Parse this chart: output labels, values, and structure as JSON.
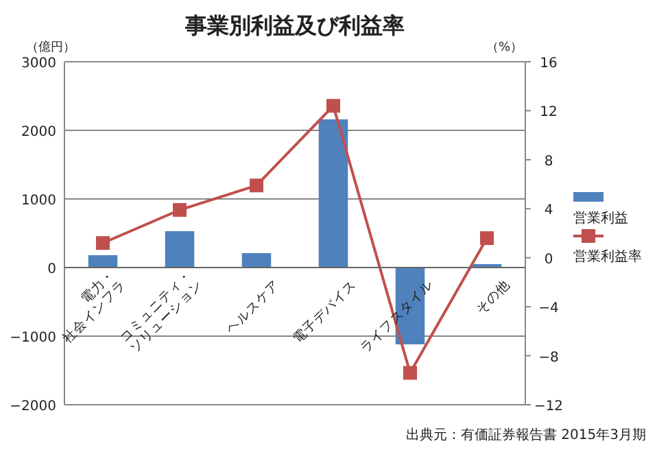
{
  "chart_data": {
    "type": "bar",
    "title": "事業別利益及び利益率",
    "categories": [
      "電力・\n社会インフラ",
      "コミュニティ・\nソリューション",
      "ヘルスケア",
      "電子デバイス",
      "ライフスタイル",
      "その他"
    ],
    "series": [
      {
        "name": "営業利益",
        "color": "#4f81bd",
        "values": [
          180,
          530,
          210,
          2160,
          -1120,
          50
        ]
      },
      {
        "name": "営業利益率",
        "type": "line",
        "axis": "y2",
        "color": "#c0504d",
        "marker": "square",
        "values": [
          1.2,
          3.9,
          5.9,
          12.4,
          -9.4,
          1.6
        ]
      }
    ],
    "ylabel": "（億円）",
    "y2label": "（%）",
    "ylim": [
      -2000,
      3000
    ],
    "yticks": [
      -2000,
      -1000,
      0,
      1000,
      2000,
      3000
    ],
    "y2lim": [
      -12,
      16
    ],
    "y2ticks": [
      -12,
      -8,
      -4,
      0,
      4,
      8,
      12,
      16
    ],
    "grid": "y",
    "legend": "right",
    "annotations": [
      "出典元：有価証券報告書 2015年3月期"
    ]
  }
}
